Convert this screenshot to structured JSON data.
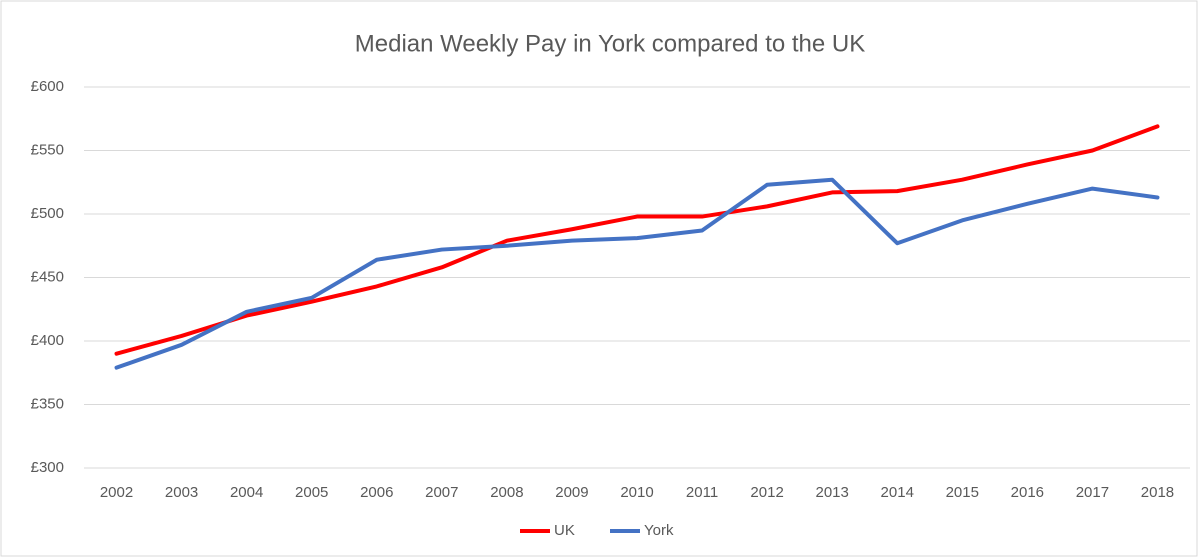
{
  "chart_data": {
    "type": "line",
    "title": "Median Weekly Pay in York compared to the UK",
    "categories": [
      "2002",
      "2003",
      "2004",
      "2005",
      "2006",
      "2007",
      "2008",
      "2009",
      "2010",
      "2011",
      "2012",
      "2013",
      "2014",
      "2015",
      "2016",
      "2017",
      "2018"
    ],
    "series": [
      {
        "name": "UK",
        "color": "#ff0000",
        "values": [
          390,
          404,
          420,
          431,
          443,
          458,
          479,
          488,
          498,
          498,
          506,
          517,
          518,
          527,
          539,
          550,
          569
        ]
      },
      {
        "name": "York",
        "color": "#4472c4",
        "values": [
          379,
          397,
          423,
          434,
          464,
          472,
          475,
          479,
          481,
          487,
          523,
          527,
          477,
          495,
          508,
          520,
          513
        ]
      }
    ],
    "ylim": [
      300,
      600
    ],
    "yticks": [
      {
        "value": 300,
        "label": "£300"
      },
      {
        "value": 350,
        "label": "£350"
      },
      {
        "value": 400,
        "label": "£400"
      },
      {
        "value": 450,
        "label": "£450"
      },
      {
        "value": 500,
        "label": "£500"
      },
      {
        "value": 550,
        "label": "£550"
      },
      {
        "value": 600,
        "label": "£600"
      }
    ],
    "grid": true,
    "legend": "bottom"
  }
}
